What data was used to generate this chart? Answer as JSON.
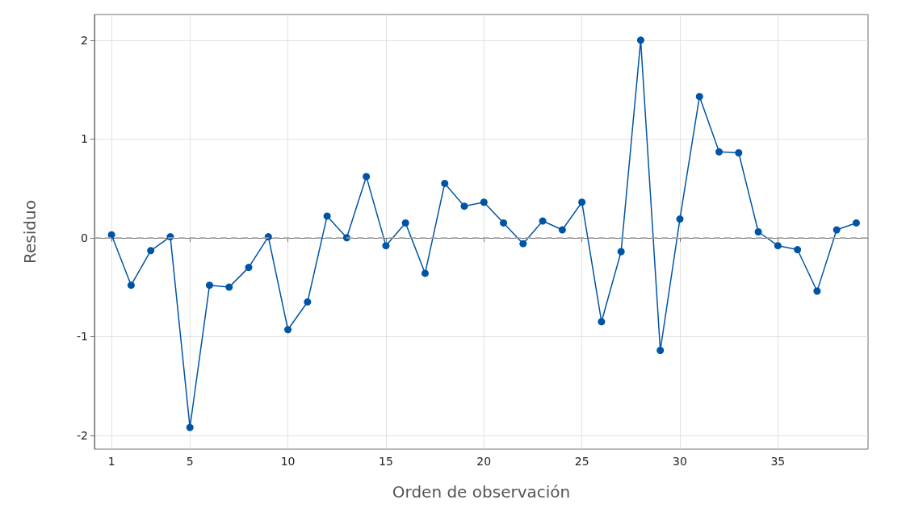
{
  "chart_data": {
    "type": "line",
    "xlabel": "Orden de observación",
    "ylabel": "Residuo",
    "x": [
      1,
      2,
      3,
      4,
      5,
      6,
      7,
      8,
      9,
      10,
      11,
      12,
      13,
      14,
      15,
      16,
      17,
      18,
      19,
      20,
      21,
      22,
      23,
      24,
      25,
      26,
      27,
      28,
      29,
      30,
      31,
      32,
      33,
      34,
      35,
      36,
      37,
      38,
      39
    ],
    "series": [
      {
        "color": "#0054a6",
        "values": [
          0.03,
          -0.48,
          -0.13,
          0.01,
          -1.92,
          -0.48,
          -0.5,
          -0.3,
          0.01,
          -0.93,
          -0.65,
          0.22,
          0,
          0.62,
          -0.08,
          0.15,
          -0.36,
          0.55,
          0.32,
          0.36,
          0.15,
          -0.06,
          0.17,
          0.08,
          0.36,
          -0.85,
          -0.14,
          2,
          -1.14,
          0.19,
          1.43,
          0.87,
          0.86,
          0.06,
          -0.08,
          -0.12,
          -0.54,
          0.08,
          0.15
        ]
      }
    ],
    "xlim": [
      0.13,
      39.6
    ],
    "xticks": [
      1,
      5,
      10,
      15,
      20,
      25,
      30,
      35
    ],
    "ylim": [
      -2.14,
      2.26
    ],
    "yticks": [
      -2,
      -1,
      0,
      1,
      2
    ],
    "ref_lines": [
      {
        "axis": "y",
        "value": 0,
        "color": "#a6a6a6",
        "line_style": "dashed"
      }
    ],
    "grid": true,
    "marker": "circle",
    "line_style": "solid"
  }
}
